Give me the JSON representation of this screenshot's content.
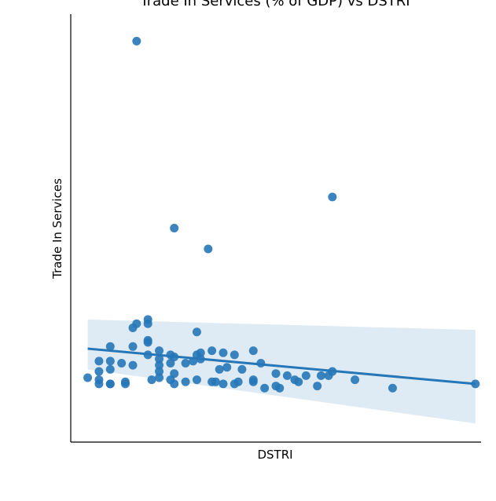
{
  "chart_data": {
    "type": "scatter",
    "title": "Trade In Services (% of GDP) vs DSTRI",
    "xlabel": "DSTRI",
    "ylabel": "Trade In Services",
    "xlim": [
      0.012,
      0.121
    ],
    "ylim": [
      2,
      208
    ],
    "xticks_visible": false,
    "yticks_visible": false,
    "grid": false,
    "points": [
      {
        "x": 0.0165,
        "y": 33
      },
      {
        "x": 0.0295,
        "y": 195
      },
      {
        "x": 0.0395,
        "y": 105
      },
      {
        "x": 0.0485,
        "y": 95
      },
      {
        "x": 0.0815,
        "y": 120
      },
      {
        "x": 0.0295,
        "y": 59
      },
      {
        "x": 0.0325,
        "y": 59
      },
      {
        "x": 0.0325,
        "y": 61
      },
      {
        "x": 0.0285,
        "y": 57
      },
      {
        "x": 0.0455,
        "y": 55
      },
      {
        "x": 0.0325,
        "y": 51
      },
      {
        "x": 0.0325,
        "y": 50
      },
      {
        "x": 0.0225,
        "y": 48
      },
      {
        "x": 0.0285,
        "y": 48
      },
      {
        "x": 0.0355,
        "y": 46
      },
      {
        "x": 0.0385,
        "y": 44
      },
      {
        "x": 0.0455,
        "y": 44
      },
      {
        "x": 0.0495,
        "y": 46
      },
      {
        "x": 0.0465,
        "y": 45
      },
      {
        "x": 0.0525,
        "y": 45
      },
      {
        "x": 0.0555,
        "y": 44
      },
      {
        "x": 0.0605,
        "y": 46
      },
      {
        "x": 0.0195,
        "y": 41
      },
      {
        "x": 0.0225,
        "y": 41
      },
      {
        "x": 0.0255,
        "y": 40
      },
      {
        "x": 0.0325,
        "y": 44
      },
      {
        "x": 0.0355,
        "y": 42
      },
      {
        "x": 0.0395,
        "y": 43
      },
      {
        "x": 0.0425,
        "y": 40
      },
      {
        "x": 0.0445,
        "y": 41
      },
      {
        "x": 0.0465,
        "y": 42
      },
      {
        "x": 0.0535,
        "y": 38
      },
      {
        "x": 0.0625,
        "y": 40
      },
      {
        "x": 0.0355,
        "y": 39
      },
      {
        "x": 0.0385,
        "y": 40
      },
      {
        "x": 0.0195,
        "y": 36
      },
      {
        "x": 0.0225,
        "y": 37
      },
      {
        "x": 0.0285,
        "y": 39
      },
      {
        "x": 0.0355,
        "y": 36
      },
      {
        "x": 0.0395,
        "y": 35
      },
      {
        "x": 0.0515,
        "y": 37
      },
      {
        "x": 0.0575,
        "y": 37
      },
      {
        "x": 0.0665,
        "y": 35
      },
      {
        "x": 0.0695,
        "y": 34
      },
      {
        "x": 0.0745,
        "y": 34
      },
      {
        "x": 0.0815,
        "y": 36
      },
      {
        "x": 0.0195,
        "y": 32
      },
      {
        "x": 0.0225,
        "y": 30
      },
      {
        "x": 0.0265,
        "y": 31
      },
      {
        "x": 0.0355,
        "y": 33
      },
      {
        "x": 0.0385,
        "y": 32
      },
      {
        "x": 0.0425,
        "y": 31
      },
      {
        "x": 0.0455,
        "y": 32
      },
      {
        "x": 0.0525,
        "y": 30
      },
      {
        "x": 0.0565,
        "y": 31
      },
      {
        "x": 0.0605,
        "y": 32
      },
      {
        "x": 0.0635,
        "y": 28
      },
      {
        "x": 0.0665,
        "y": 29
      },
      {
        "x": 0.0715,
        "y": 32
      },
      {
        "x": 0.0775,
        "y": 29
      },
      {
        "x": 0.0875,
        "y": 32
      },
      {
        "x": 0.0975,
        "y": 28
      },
      {
        "x": 0.1195,
        "y": 30
      },
      {
        "x": 0.0225,
        "y": 30
      },
      {
        "x": 0.0265,
        "y": 30
      },
      {
        "x": 0.0335,
        "y": 32
      },
      {
        "x": 0.0395,
        "y": 30
      },
      {
        "x": 0.0495,
        "y": 31
      },
      {
        "x": 0.0555,
        "y": 30
      },
      {
        "x": 0.0675,
        "y": 28
      },
      {
        "x": 0.0725,
        "y": 31
      },
      {
        "x": 0.0785,
        "y": 34
      },
      {
        "x": 0.0805,
        "y": 34
      },
      {
        "x": 0.0505,
        "y": 31
      },
      {
        "x": 0.0195,
        "y": 30
      },
      {
        "x": 0.0605,
        "y": 31
      }
    ],
    "regression": {
      "x": [
        0.0165,
        0.1195
      ],
      "y": [
        47,
        30
      ],
      "ci_lower": [
        37,
        11
      ],
      "ci_upper": [
        61,
        56
      ]
    }
  }
}
